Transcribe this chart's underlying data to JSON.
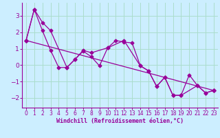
{
  "xlabel": "Windchill (Refroidissement éolien,°C)",
  "background_color": "#cceeff",
  "grid_color": "#aaddcc",
  "line_color": "#990099",
  "xlim": [
    -0.5,
    23.5
  ],
  "ylim": [
    -2.6,
    3.8
  ],
  "yticks": [
    -2,
    -1,
    0,
    1,
    2,
    3
  ],
  "xticks": [
    0,
    1,
    2,
    3,
    4,
    5,
    6,
    7,
    8,
    9,
    10,
    11,
    12,
    13,
    14,
    15,
    16,
    17,
    18,
    19,
    20,
    21,
    22,
    23
  ],
  "series1_x": [
    0,
    1,
    2,
    3,
    4,
    5,
    6,
    7,
    8,
    9,
    10,
    11,
    12,
    13,
    14,
    15,
    16,
    17,
    18,
    19,
    20,
    21,
    22,
    23
  ],
  "series1_y": [
    1.5,
    3.4,
    2.1,
    0.9,
    -0.15,
    -0.15,
    0.35,
    0.85,
    0.5,
    -0.05,
    1.05,
    1.5,
    1.4,
    1.35,
    -0.05,
    -0.35,
    -1.3,
    -0.75,
    -1.85,
    -1.85,
    -0.6,
    -1.25,
    -1.7,
    -1.55
  ],
  "series2_x": [
    0,
    1,
    2,
    3,
    5,
    6,
    7,
    8,
    10,
    12,
    14,
    15,
    16,
    17,
    18,
    19,
    21,
    22,
    23
  ],
  "series2_y": [
    1.5,
    3.4,
    2.6,
    2.1,
    -0.15,
    0.35,
    0.9,
    0.75,
    1.05,
    1.5,
    -0.05,
    -0.35,
    -1.3,
    -0.75,
    -1.85,
    -1.85,
    -1.25,
    -1.7,
    -1.55
  ],
  "series3_x": [
    0,
    23
  ],
  "series3_y": [
    1.5,
    -1.55
  ],
  "marker": "D",
  "markersize": 2.5,
  "linewidth": 0.9
}
